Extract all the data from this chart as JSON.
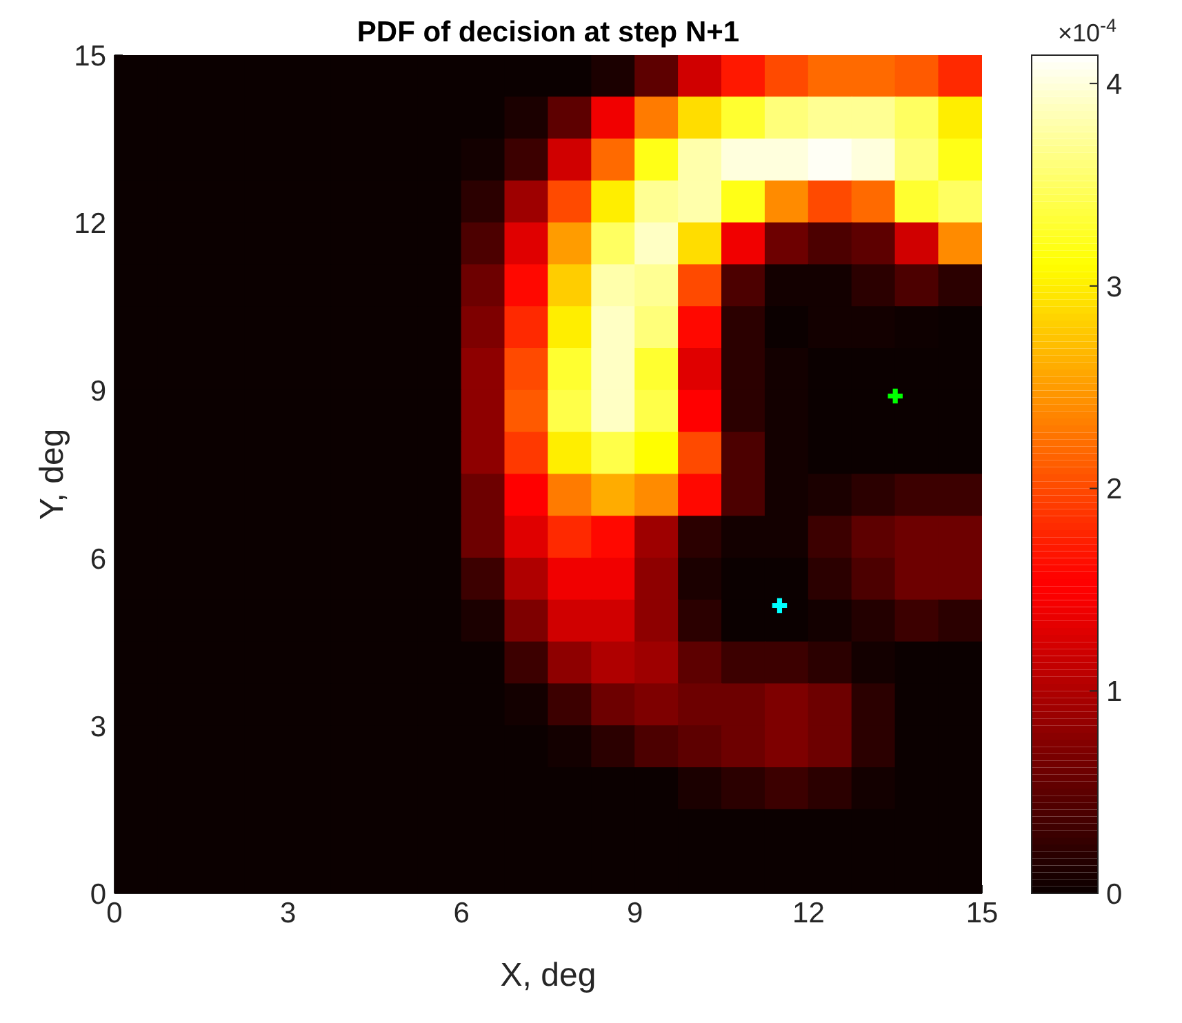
{
  "chart_data": {
    "type": "heatmap",
    "title": "PDF of decision at step N+1",
    "xlabel": "X, deg",
    "ylabel": "Y, deg",
    "clabel": "×10$^{-4}$",
    "xlim": [
      0,
      15
    ],
    "ylim": [
      0,
      15
    ],
    "xticks": [
      0,
      3,
      6,
      9,
      12,
      15
    ],
    "yticks": [
      0,
      3,
      6,
      9,
      12,
      15
    ],
    "clim": [
      0,
      4.14
    ],
    "cticks": [
      0,
      1,
      2,
      3,
      4
    ],
    "marker": "cross",
    "cells": [
      [
        0,
        0,
        0,
        0,
        0,
        0,
        0,
        0,
        0,
        0,
        0,
        0.1,
        0.5,
        1.2,
        1.7,
        2.0,
        2.2,
        2.2,
        2.1,
        1.8
      ],
      [
        0,
        0,
        0,
        0,
        0,
        0,
        0,
        0,
        0,
        0.1,
        0.5,
        1.4,
        2.3,
        2.9,
        3.3,
        3.6,
        3.7,
        3.7,
        3.5,
        3.0
      ],
      [
        0,
        0,
        0,
        0,
        0,
        0,
        0,
        0,
        0.05,
        0.3,
        1.2,
        2.2,
        3.2,
        3.8,
        4.0,
        4.0,
        4.1,
        4.0,
        3.6,
        3.2
      ],
      [
        0,
        0,
        0,
        0,
        0,
        0,
        0,
        0,
        0.2,
        0.9,
        2.0,
        3.0,
        3.7,
        3.8,
        3.2,
        2.4,
        2.0,
        2.2,
        3.3,
        3.5
      ],
      [
        0,
        0,
        0,
        0,
        0,
        0,
        0,
        0,
        0.4,
        1.3,
        2.5,
        3.5,
        3.9,
        2.9,
        1.4,
        0.6,
        0.4,
        0.5,
        1.2,
        2.4
      ],
      [
        0,
        0,
        0,
        0,
        0,
        0,
        0,
        0,
        0.6,
        1.6,
        2.8,
        3.8,
        3.7,
        2.0,
        0.4,
        0.05,
        0.05,
        0.2,
        0.4,
        0.2
      ],
      [
        0,
        0,
        0,
        0,
        0,
        0,
        0,
        0,
        0.7,
        1.8,
        3.0,
        3.9,
        3.6,
        1.6,
        0.2,
        0,
        0.05,
        0.05,
        0.02,
        0
      ],
      [
        0,
        0,
        0,
        0,
        0,
        0,
        0,
        0,
        0.8,
        2.0,
        3.3,
        3.9,
        3.3,
        1.3,
        0.2,
        0.05,
        0,
        0,
        0,
        0
      ],
      [
        0,
        0,
        0,
        0,
        0,
        0,
        0,
        0,
        0.8,
        2.1,
        3.4,
        3.9,
        3.4,
        1.5,
        0.2,
        0.05,
        0,
        0,
        0,
        0
      ],
      [
        0,
        0,
        0,
        0,
        0,
        0,
        0,
        0,
        0.8,
        1.9,
        3.0,
        3.4,
        3.1,
        2.0,
        0.4,
        0.05,
        0,
        0,
        0,
        0
      ],
      [
        0,
        0,
        0,
        0,
        0,
        0,
        0,
        0,
        0.6,
        1.5,
        2.3,
        2.6,
        2.4,
        1.6,
        0.4,
        0.05,
        0.1,
        0.2,
        0.3,
        0.3
      ],
      [
        0,
        0,
        0,
        0,
        0,
        0,
        0,
        0,
        0.6,
        1.3,
        1.8,
        1.6,
        0.9,
        0.2,
        0.05,
        0.05,
        0.3,
        0.5,
        0.6,
        0.6
      ],
      [
        0,
        0,
        0,
        0,
        0,
        0,
        0,
        0,
        0.3,
        1.0,
        1.4,
        1.4,
        0.8,
        0.1,
        0,
        0,
        0.2,
        0.4,
        0.6,
        0.6
      ],
      [
        0,
        0,
        0,
        0,
        0,
        0,
        0,
        0,
        0.1,
        0.7,
        1.2,
        1.2,
        0.8,
        0.2,
        0,
        0,
        0.05,
        0.15,
        0.3,
        0.2
      ],
      [
        0,
        0,
        0,
        0,
        0,
        0,
        0,
        0,
        0,
        0.3,
        0.8,
        1.0,
        0.9,
        0.5,
        0.3,
        0.3,
        0.2,
        0.05,
        0,
        0
      ],
      [
        0,
        0,
        0,
        0,
        0,
        0,
        0,
        0,
        0,
        0.05,
        0.3,
        0.6,
        0.7,
        0.6,
        0.6,
        0.7,
        0.6,
        0.2,
        0,
        0
      ],
      [
        0,
        0,
        0,
        0,
        0,
        0,
        0,
        0,
        0,
        0,
        0.05,
        0.2,
        0.4,
        0.5,
        0.6,
        0.7,
        0.6,
        0.2,
        0,
        0
      ],
      [
        0,
        0,
        0,
        0,
        0,
        0,
        0,
        0,
        0,
        0,
        0,
        0,
        0,
        0.1,
        0.2,
        0.3,
        0.2,
        0.05,
        0,
        0
      ],
      [
        0,
        0,
        0,
        0,
        0,
        0,
        0,
        0,
        0,
        0,
        0,
        0,
        0,
        0,
        0,
        0,
        0,
        0,
        0,
        0
      ],
      [
        0,
        0,
        0,
        0,
        0,
        0,
        0,
        0,
        0,
        0,
        0,
        0,
        0,
        0,
        0,
        0,
        0,
        0,
        0,
        0
      ]
    ],
    "series": [
      {
        "type": "scatter",
        "color": "#00ff00",
        "x": [
          13.5
        ],
        "values": [
          8.9
        ]
      },
      {
        "type": "scatter",
        "color": "#00ffff",
        "x": [
          11.5
        ],
        "values": [
          5.15
        ]
      }
    ]
  }
}
